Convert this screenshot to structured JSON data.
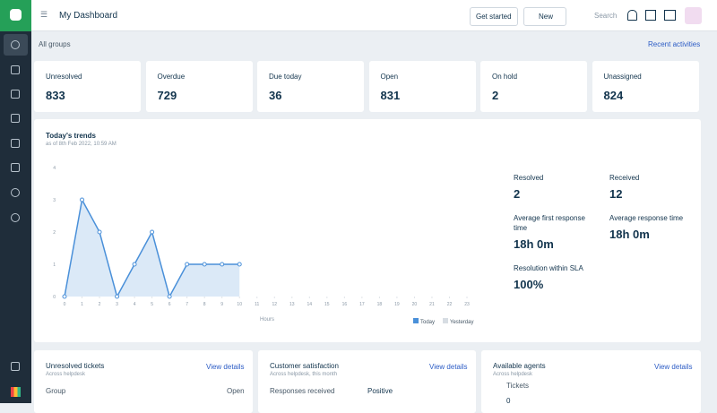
{
  "header": {
    "title": "My Dashboard",
    "get_started": "Get started",
    "new": "New",
    "search": "Search"
  },
  "filter": {
    "group": "All groups",
    "recent": "Recent activities"
  },
  "stats": [
    {
      "label": "Unresolved",
      "value": 833
    },
    {
      "label": "Overdue",
      "value": 729
    },
    {
      "label": "Due today",
      "value": 36
    },
    {
      "label": "Open",
      "value": 831
    },
    {
      "label": "On hold",
      "value": 2
    },
    {
      "label": "Unassigned",
      "value": 824
    }
  ],
  "chart_data": {
    "type": "line",
    "title": "Today's trends",
    "subtitle": "as of 8th Feb 2022, 10:59 AM",
    "x_label": "Hours",
    "x": [
      0,
      1,
      2,
      3,
      4,
      5,
      6,
      7,
      8,
      9,
      10,
      11,
      12,
      13,
      14,
      15,
      16,
      17,
      18,
      19,
      20,
      21,
      22,
      23
    ],
    "series": [
      {
        "name": "Today",
        "color": "#4a90d9",
        "values": [
          0,
          3,
          2,
          0,
          1,
          2,
          0,
          1,
          1,
          1,
          1,
          null,
          null,
          null,
          null,
          null,
          null,
          null,
          null,
          null,
          null,
          null,
          null,
          null
        ]
      },
      {
        "name": "Yesterday",
        "color": "#d7dde3",
        "values": [
          null,
          null,
          null,
          null,
          null,
          null,
          null,
          null,
          null,
          null,
          null,
          null,
          null,
          null,
          null,
          null,
          null,
          null,
          null,
          null,
          null,
          null,
          null,
          null
        ]
      }
    ],
    "xlim": [
      0,
      23
    ],
    "xticks": [
      0,
      1,
      2,
      3,
      4,
      5,
      6,
      7,
      8,
      9,
      10,
      11,
      12,
      13,
      14,
      15,
      16,
      17,
      18,
      19,
      20,
      21,
      22,
      23
    ],
    "ylim": [
      0,
      4
    ],
    "yticks": [
      0,
      1,
      2,
      3,
      4
    ],
    "grid": false
  },
  "summary": [
    {
      "label": "Resolved",
      "value": 2
    },
    {
      "label": "Received",
      "value": 12
    },
    {
      "label": "Average first response time",
      "value": "18h 0m"
    },
    {
      "label": "Average response time",
      "value": "18h 0m"
    },
    {
      "label": "Resolution within SLA",
      "value": "100%"
    }
  ],
  "cards": [
    {
      "title": "Unresolved tickets",
      "subtitle": "Across helpdesk",
      "link": "View details",
      "col1": "Group",
      "col2": "Open"
    },
    {
      "title": "Customer satisfaction",
      "subtitle": "Across helpdesk, this month",
      "link": "View details",
      "col1": "Responses received",
      "col2": "Positive"
    },
    {
      "title": "Available agents",
      "subtitle": "Across helpdesk",
      "link": "View details",
      "col1": "Tickets",
      "col2": "0"
    }
  ],
  "chat_badge": "1"
}
